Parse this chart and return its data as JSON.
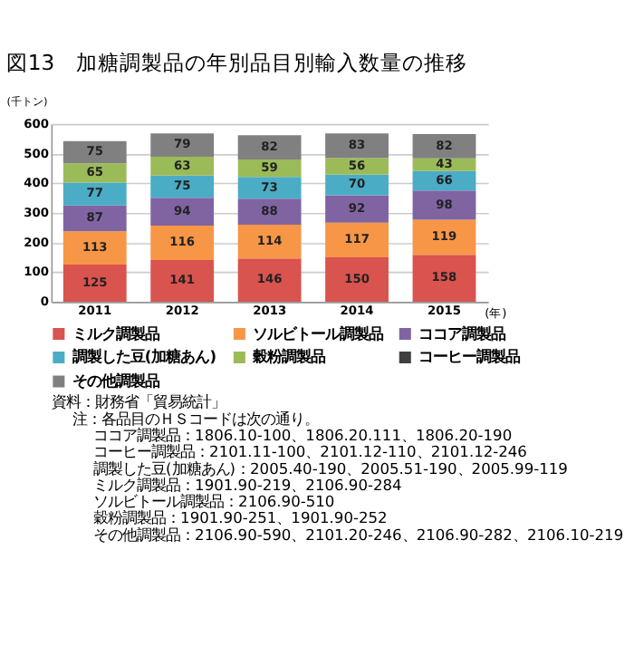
{
  "chart_data": {
    "type": "bar",
    "stacked": true,
    "title": "図13　加糖調製品の年別品目別輸入数量の推移",
    "ylabel": "(千トン)",
    "xlabel": "(年)",
    "categories": [
      "2011",
      "2012",
      "2013",
      "2014",
      "2015"
    ],
    "series": [
      {
        "name": "ミルク調製品",
        "color": "#d9534f",
        "values": [
          125,
          141,
          146,
          150,
          158
        ]
      },
      {
        "name": "ソルビトール調製品",
        "color": "#f79646",
        "values": [
          113,
          116,
          114,
          117,
          119
        ]
      },
      {
        "name": "ココア調製品",
        "color": "#8064a2",
        "values": [
          87,
          94,
          88,
          92,
          98
        ]
      },
      {
        "name": "調製した豆(加糖あん)",
        "color": "#4bacc6",
        "values": [
          77,
          75,
          73,
          70,
          66
        ]
      },
      {
        "name": "穀粉調製品",
        "color": "#9bbb59",
        "values": [
          65,
          63,
          59,
          56,
          43
        ]
      },
      {
        "name": "コーヒー調製品",
        "color": "#404040",
        "values": [
          null,
          null,
          null,
          null,
          null
        ]
      },
      {
        "name": "その他調製品",
        "color": "#808080",
        "values": [
          75,
          79,
          82,
          83,
          82
        ]
      }
    ],
    "ylim": [
      0,
      600
    ],
    "yticks": [
      0,
      100,
      200,
      300,
      400,
      500,
      600
    ],
    "grid": "y",
    "legend": "bottom",
    "data_labels": true,
    "annotations": [
      "資料：財務省「貿易統計」",
      "注：各品目のＨＳコードは次の通り。",
      "ココア調製品：1806.10-100、1806.20.111、1806.20-190",
      "コーヒー調製品：2101.11-100、2101.12-110、2101.12-246",
      "調製した豆(加糖あん)：2005.40-190、2005.51-190、2005.99-119",
      "ミルク調製品：1901.90-219、2106.90-284",
      "ソルビトール調製品：2106.90-510",
      "穀粉調製品：1901.90-251、1901.90-252",
      "その他調製品：2106.90-590、2101.20-246、2106.90-282、2106.10-219"
    ]
  }
}
